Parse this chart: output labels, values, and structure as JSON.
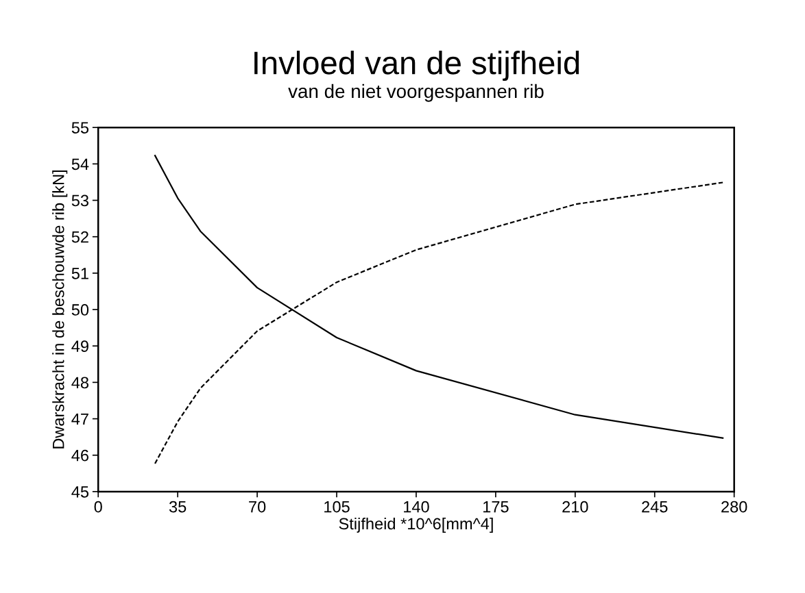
{
  "chart_data": {
    "type": "line",
    "title": "Invloed van de stijfheid",
    "subtitle": "van de niet voorgespannen rib",
    "xlabel": "Stijfheid *10^6[mm^4]",
    "ylabel": "Dwarskracht in de beschouwde rib [kN]",
    "x": [
      25,
      35,
      45,
      70,
      105,
      140,
      210,
      275
    ],
    "series": [
      {
        "color": "#000000",
        "line_style": "solid",
        "values": [
          54.23,
          53.06,
          52.15,
          50.6,
          49.23,
          48.32,
          47.11,
          46.47
        ]
      },
      {
        "color": "#000000",
        "line_style": "dashed",
        "values": [
          45.77,
          46.92,
          47.84,
          49.41,
          50.75,
          51.64,
          52.89,
          53.49
        ]
      }
    ],
    "xlim": [
      0,
      280
    ],
    "xticks": [
      0,
      35,
      70,
      105,
      140,
      175,
      210,
      245,
      280
    ],
    "ylim": [
      45,
      55
    ],
    "yticks": [
      45,
      46,
      47,
      48,
      49,
      50,
      51,
      52,
      53,
      54,
      55
    ],
    "grid": false,
    "legend": false,
    "marker": "none"
  }
}
